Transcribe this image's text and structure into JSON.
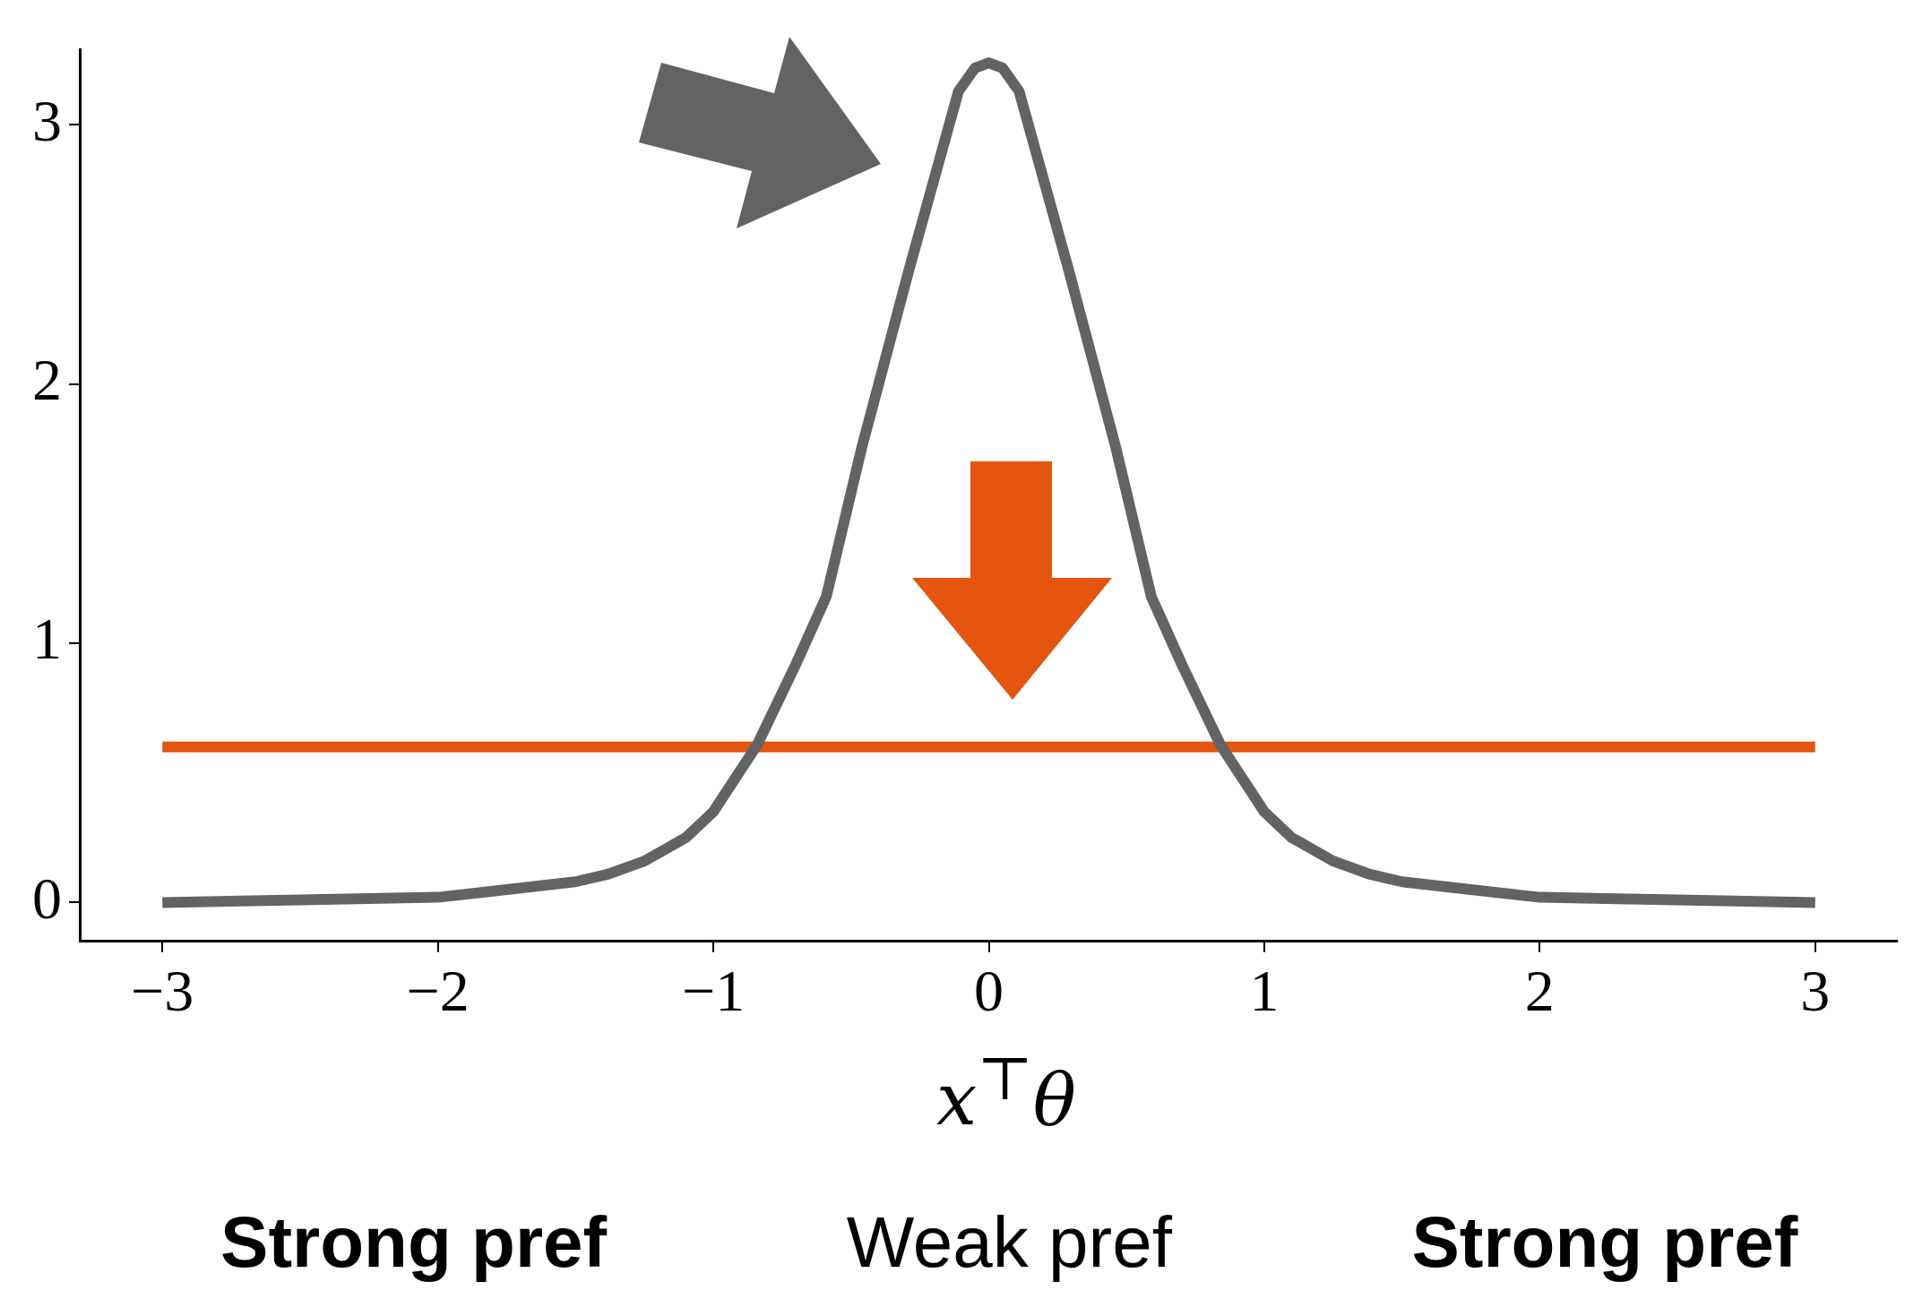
{
  "chart_data": {
    "type": "line",
    "xlabel": "x$^{⊤}$θ",
    "xlim": [
      -3.3,
      3.3
    ],
    "ylim": [
      -0.15,
      3.29
    ],
    "xticks": [
      {
        "value": -3,
        "label": "−3"
      },
      {
        "value": -2,
        "label": "−2"
      },
      {
        "value": -1,
        "label": "−1"
      },
      0,
      1,
      2,
      3
    ],
    "yticks": [
      0,
      1,
      2,
      3
    ],
    "grid": false,
    "legend": false,
    "marker": "none",
    "line_style": "solid",
    "series": [
      {
        "color": "#636363",
        "x": [
          -3,
          -2.5,
          -2,
          -1.75,
          -1.5,
          -1.38,
          -1.25,
          -1.1,
          -1,
          -0.84,
          -0.7,
          -0.59,
          -0.46,
          -0.29,
          -0.17,
          -0.11,
          -0.05,
          0,
          0.05,
          0.11,
          0.17,
          0.29,
          0.46,
          0.59,
          0.7,
          0.84,
          1,
          1.1,
          1.25,
          1.38,
          1.5,
          1.75,
          2,
          2.5,
          3
        ],
        "values": [
          0,
          0.01,
          0.02,
          0.05,
          0.08,
          0.11,
          0.16,
          0.25,
          0.35,
          0.61,
          0.92,
          1.18,
          1.76,
          2.44,
          2.9,
          3.13,
          3.22,
          3.24,
          3.22,
          3.13,
          2.9,
          2.44,
          1.76,
          1.18,
          0.92,
          0.61,
          0.35,
          0.25,
          0.16,
          0.11,
          0.08,
          0.05,
          0.02,
          0.01,
          0
        ]
      },
      {
        "color": "#e4550f",
        "x": [
          -3,
          3
        ],
        "values": [
          0.6,
          0.6
        ]
      }
    ],
    "annotations": [
      "Strong pref",
      "Weak pref",
      "Strong pref"
    ]
  }
}
